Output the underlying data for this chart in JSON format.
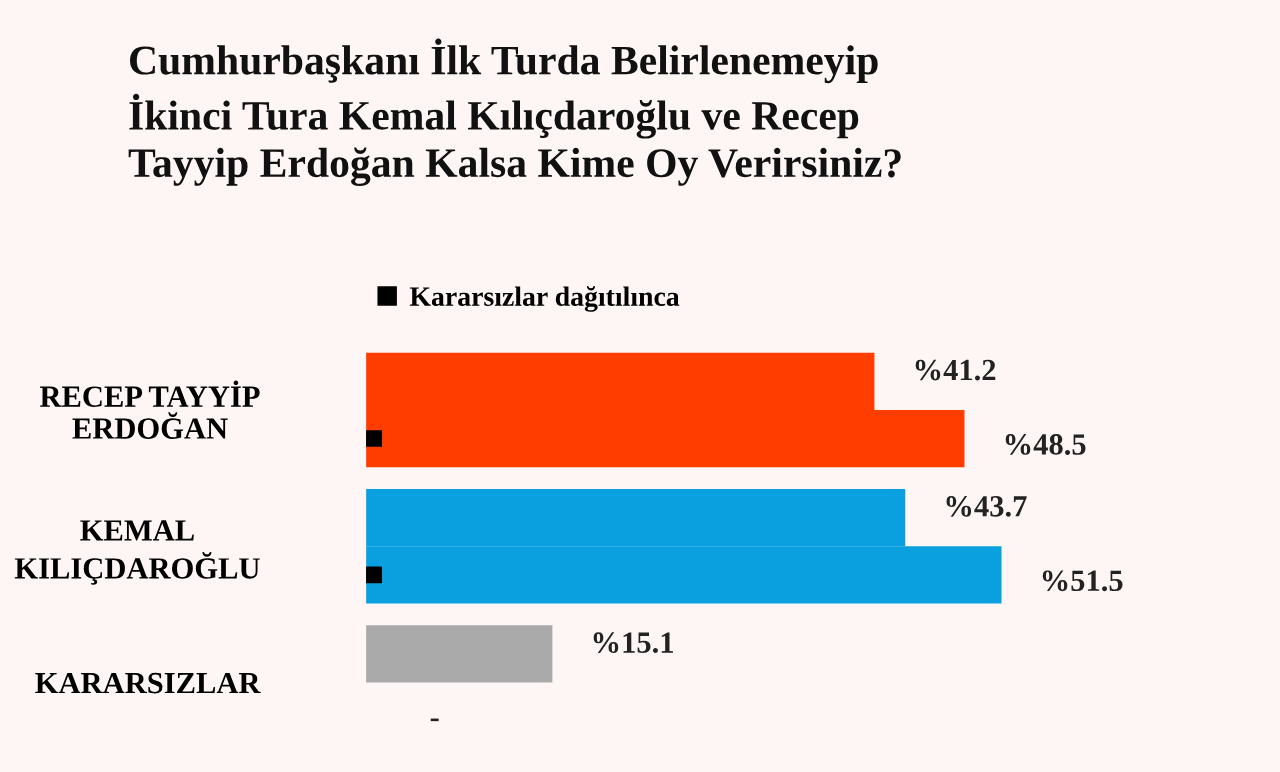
{
  "chart_data": {
    "type": "bar",
    "orientation": "horizontal",
    "title": "Cumhurbaşkanı İlk Turda Belirlenemeyip\nİkinci Tura Kemal Kılıçdaroğlu ve Recep\nTayyip Erdoğan Kalsa Kime Oy Verirsiniz?",
    "categories": [
      "RECEP TAYYİP\nERDOĞAN",
      "KEMAL\nKILIÇDAROĞLU",
      "KARARSIZLAR"
    ],
    "series": [
      {
        "colors": [
          "#ff3d00",
          "#0aa0e0",
          "#aaaaaa"
        ],
        "values": [
          41.2,
          43.7,
          15.1
        ],
        "value_labels": [
          "%41.2",
          "%43.7",
          "%15.1"
        ]
      },
      {
        "name": "Kararsızlar dağıtılınca",
        "color": "#000000",
        "colors": [
          "#ff3d00",
          "#0aa0e0",
          "#555a66"
        ],
        "values": [
          48.5,
          51.5,
          null
        ],
        "value_labels": [
          "%48.5",
          "%51.5",
          "-"
        ]
      }
    ],
    "legend": "top left",
    "grid": false
  }
}
